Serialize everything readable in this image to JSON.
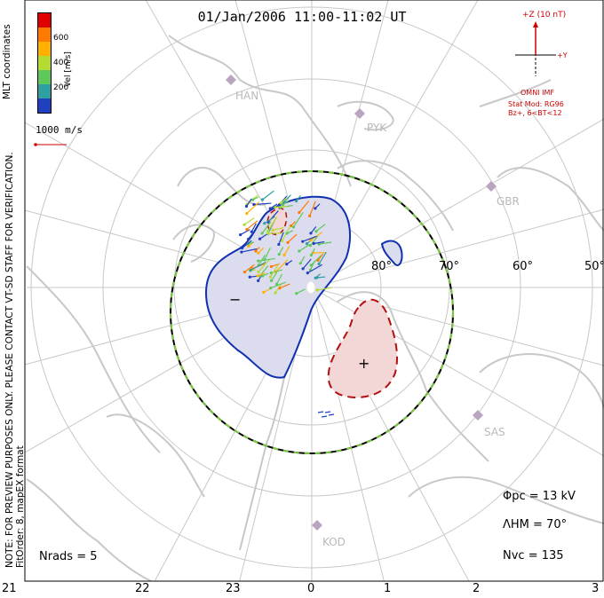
{
  "title": "01/Jan/2006 11:00-11:02 UT",
  "colorbar": {
    "label": "Vel [m/s]",
    "ticks": [
      "600",
      "400",
      "200"
    ],
    "colors": [
      "#e00000",
      "#ff7a00",
      "#ffb000",
      "#b4dc30",
      "#5fc85a",
      "#2fa0a0",
      "#2040c0",
      "#0000e0"
    ]
  },
  "coordinate_system": "MLT coordinates",
  "reference_vector": "1000 m/s",
  "imf": {
    "z_label": "+Z (10 nT)",
    "y_label": "+Y",
    "source": "OMNI IMF",
    "stat_mod": "Stat Mod: RG96",
    "condition": "Bz+, 6<BT<12"
  },
  "notes": {
    "preview": "NOTE: FOR PREVIEW PURPOSES ONLY. PLEASE CONTACT VT-SD STAFF FOR VERIFICATION.",
    "fit_order": "FitOrder: 8, mapEX format"
  },
  "stats": {
    "phi_pc_label": "Φpc",
    "phi_pc_value": "= 13 kV",
    "lambda_hm_label": "ΛHM",
    "lambda_hm_value": "= 70°",
    "n_vc_label": "Nvc",
    "n_vc_value": "= 135",
    "n_rads_label": "Nrads",
    "n_rads_value": "= 5"
  },
  "mlt_labels": [
    "21",
    "22",
    "23",
    "0",
    "1",
    "2",
    "3"
  ],
  "latitude_labels": [
    "80°",
    "70°",
    "60°",
    "50°"
  ],
  "radars": [
    "HAN",
    "PYK",
    "GBR",
    "SAS",
    "KOD"
  ],
  "potential_signs": {
    "minimum": "−",
    "maximum": "+"
  },
  "palette": {
    "negative_cell_fill": "#dcdcef",
    "negative_cell_line": "#1030b0",
    "positive_cell_fill": "#f3d6d6",
    "positive_cell_line": "#b01010",
    "heppner_boundary_dash": "#7ac840",
    "coastline": "#c8c8c8",
    "grid": "#c8c8c8"
  }
}
